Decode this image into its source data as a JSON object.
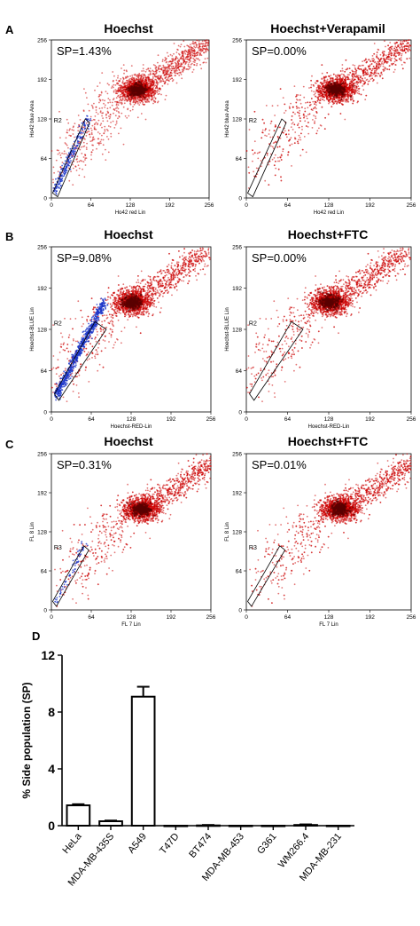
{
  "panels": {
    "A": "A",
    "B": "B",
    "C": "C",
    "D": "D"
  },
  "chart_data": [
    {
      "panel": "A",
      "type": "scatter",
      "title": "Hoechst",
      "annotation": "SP=1.43%",
      "xlabel": "Ho42 red Lin",
      "ylabel": "Ho42 blue Area",
      "gate": "R2",
      "xlim": [
        0,
        256
      ],
      "ylim": [
        0,
        256
      ],
      "xticks": [
        "0",
        "64",
        "128",
        "192",
        "256"
      ],
      "yticks": [
        "0",
        "64",
        "128",
        "192",
        "256"
      ],
      "main_population": {
        "center": [
          140,
          175
        ],
        "color": "#cc0000"
      },
      "side_population": {
        "x_range": [
          5,
          60
        ],
        "y_range": [
          10,
          130
        ],
        "color": "#1a35c8"
      }
    },
    {
      "panel": "A",
      "type": "scatter",
      "title": "Hoechst+Verapamil",
      "annotation": "SP=0.00%",
      "xlabel": "Ho42 red Lin",
      "ylabel": "Ho42 blue Area",
      "gate": "R2",
      "xlim": [
        0,
        256
      ],
      "ylim": [
        0,
        256
      ],
      "xticks": [
        "0",
        "64",
        "128",
        "192",
        "256"
      ],
      "yticks": [
        "0",
        "64",
        "128",
        "192",
        "256"
      ],
      "main_population": {
        "center": [
          140,
          175
        ],
        "color": "#cc0000"
      }
    },
    {
      "panel": "B",
      "type": "scatter",
      "title": "Hoechst",
      "annotation": "SP=9.08%",
      "xlabel": "Hoechst-RED-Lin",
      "ylabel": "Hoechst-BLUE Lin",
      "gate": "R2",
      "xlim": [
        0,
        256
      ],
      "ylim": [
        0,
        256
      ],
      "xticks": [
        "0",
        "64",
        "128",
        "192",
        "256"
      ],
      "yticks": [
        "0",
        "64",
        "128",
        "192",
        "256"
      ],
      "main_population": {
        "center": [
          130,
          170
        ],
        "color": "#cc0000"
      },
      "side_population": {
        "x_range": [
          8,
          85
        ],
        "y_range": [
          25,
          170
        ],
        "color": "#1a35c8"
      }
    },
    {
      "panel": "B",
      "type": "scatter",
      "title": "Hoechst+FTC",
      "annotation": "SP=0.00%",
      "xlabel": "Hoechst-RED-Lin",
      "ylabel": "Hoechst-BLUE Lin",
      "gate": "R2",
      "xlim": [
        0,
        256
      ],
      "ylim": [
        0,
        256
      ],
      "xticks": [
        "0",
        "64",
        "128",
        "192",
        "256"
      ],
      "yticks": [
        "0",
        "64",
        "128",
        "192",
        "256"
      ],
      "main_population": {
        "center": [
          130,
          170
        ],
        "color": "#cc0000"
      }
    },
    {
      "panel": "C",
      "type": "scatter",
      "title": "Hoechst",
      "annotation": "SP=0.31%",
      "xlabel": "FL 7 Lin",
      "ylabel": "FL 8 Lin",
      "gate": "R3",
      "xlim": [
        0,
        256
      ],
      "ylim": [
        0,
        256
      ],
      "xticks": [
        "0",
        "64",
        "128",
        "192",
        "256"
      ],
      "yticks": [
        "0",
        "64",
        "128",
        "192",
        "256"
      ],
      "main_population": {
        "center": [
          145,
          165
        ],
        "color": "#cc0000"
      },
      "side_population": {
        "x_range": [
          5,
          55
        ],
        "y_range": [
          10,
          110
        ],
        "color": "#1a35c8"
      }
    },
    {
      "panel": "C",
      "type": "scatter",
      "title": "Hoechst+FTC",
      "annotation": "SP=0.01%",
      "xlabel": "FL 7 Lin",
      "ylabel": "FL 8 Lin",
      "gate": "R3",
      "xlim": [
        0,
        256
      ],
      "ylim": [
        0,
        256
      ],
      "xticks": [
        "0",
        "64",
        "128",
        "192",
        "256"
      ],
      "yticks": [
        "0",
        "64",
        "128",
        "192",
        "256"
      ],
      "main_population": {
        "center": [
          145,
          165
        ],
        "color": "#cc0000"
      }
    },
    {
      "panel": "D",
      "type": "bar",
      "title": "",
      "xlabel": "",
      "ylabel": "% Side population (SP)",
      "ylim": [
        0,
        12
      ],
      "yticks": [
        "0",
        "4",
        "8",
        "12"
      ],
      "categories": [
        "HeLa",
        "MDA-MB-435S",
        "A549",
        "T47D",
        "BT474",
        "MDA-MB-453",
        "G361",
        "WM266.4",
        "MDA-MB-231"
      ],
      "values": [
        1.43,
        0.31,
        9.08,
        0.0,
        0.02,
        0.0,
        0.0,
        0.05,
        0.0
      ],
      "errors": [
        0.08,
        0.05,
        0.7,
        0,
        0.03,
        0,
        0,
        0.04,
        0
      ]
    }
  ]
}
